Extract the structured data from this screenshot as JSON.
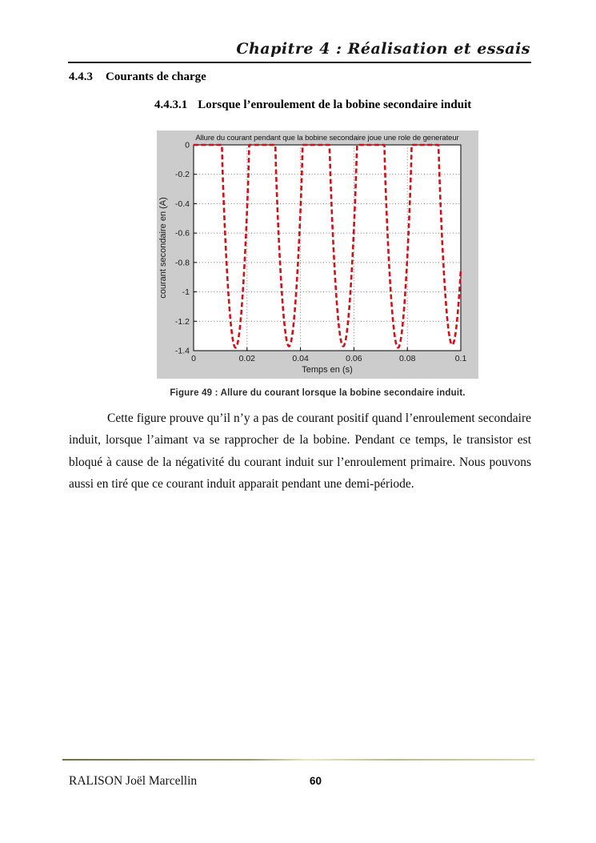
{
  "header": {
    "chapter_title": "Chapitre 4 : Réalisation et essais"
  },
  "section": {
    "number": "4.4.3",
    "title": "Courants de charge"
  },
  "subsection": {
    "number": "4.4.3.1",
    "title": "Lorsque l’enroulement de la bobine secondaire induit"
  },
  "figure": {
    "caption": "Figure 49 : Allure du courant lorsque la bobine secondaire induit."
  },
  "paragraph": {
    "lines": [
      "Cette figure prouve qu’il n’y a pas de courant positif quand l’enroulement secondaire",
      "induit, lorsque l’aimant va se rapprocher de la bobine. Pendant ce temps,  le transistor est",
      "bloqué à cause de la négativité du courant induit sur l’enroulement primaire. Nous pouvons",
      "aussi en tiré que ce courant induit apparait pendant une demi-période."
    ]
  },
  "footer": {
    "author": "RALISON Joël Marcellin",
    "page_number": "60"
  },
  "chart_data": {
    "type": "line",
    "title": "Allure du courant pendant que la bobine secondaire joue une role de generateur",
    "xlabel": "Temps en (s)",
    "ylabel": "courant secondaire en (A)",
    "xlim": [
      0,
      0.1
    ],
    "ylim": [
      -1.4,
      0
    ],
    "xticks": [
      0,
      0.02,
      0.04,
      0.06,
      0.08,
      0.1
    ],
    "xtick_labels": [
      "0",
      "0.02",
      "0.04",
      "0.06",
      "0.08",
      "0.1"
    ],
    "yticks": [
      0,
      -0.2,
      -0.4,
      -0.6,
      -0.8,
      -1,
      -1.2,
      -1.4
    ],
    "ytick_labels": [
      "0",
      "-0.2",
      "-0.4",
      "-0.6",
      "-0.8",
      "-1",
      "-1.2",
      "-1.4"
    ],
    "grid": true,
    "legend": null,
    "line_color": "#d01018",
    "line_style": "dashed",
    "background_color": "#cccccc",
    "plot_background": "#ffffff",
    "baseline_value": 0,
    "pulses": {
      "comment_shape": "current = 0 A except negative half-sine pulses, one per ~0.02 s period, each lasting about a half-period",
      "centers": [
        0.0157,
        0.0357,
        0.056,
        0.0765,
        0.0968
      ],
      "width": 0.0102,
      "minima": [
        -1.38,
        -1.37,
        -1.37,
        -1.38,
        -1.36
      ],
      "shape_exponent": 0.8
    }
  }
}
